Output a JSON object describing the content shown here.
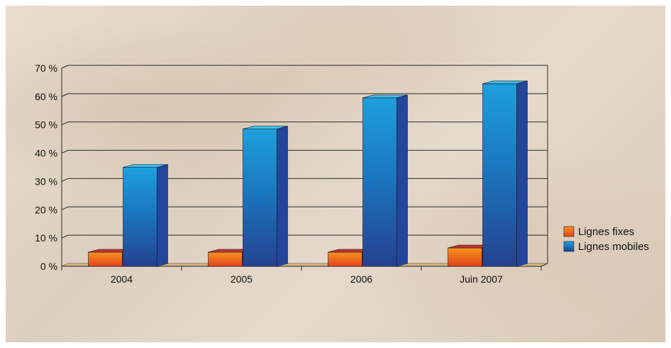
{
  "chart_data": {
    "type": "bar",
    "categories": [
      "2004",
      "2005",
      "2006",
      "Juin 2007"
    ],
    "series": [
      {
        "name": "Lignes fixes",
        "values": [
          5,
          5,
          5,
          6.5
        ]
      },
      {
        "name": "Lignes mobiles",
        "values": [
          35,
          48.5,
          59.5,
          64.5
        ]
      }
    ],
    "yticks": [
      "0 %",
      "10 %",
      "20 %",
      "30 %",
      "40 %",
      "50 %",
      "60 %",
      "70 %"
    ],
    "ylim": [
      0,
      70
    ],
    "grid": true,
    "legend_position": "right",
    "colors": {
      "Lignes fixes": "#e8531d",
      "Lignes mobiles": "#1b8ed0"
    }
  }
}
